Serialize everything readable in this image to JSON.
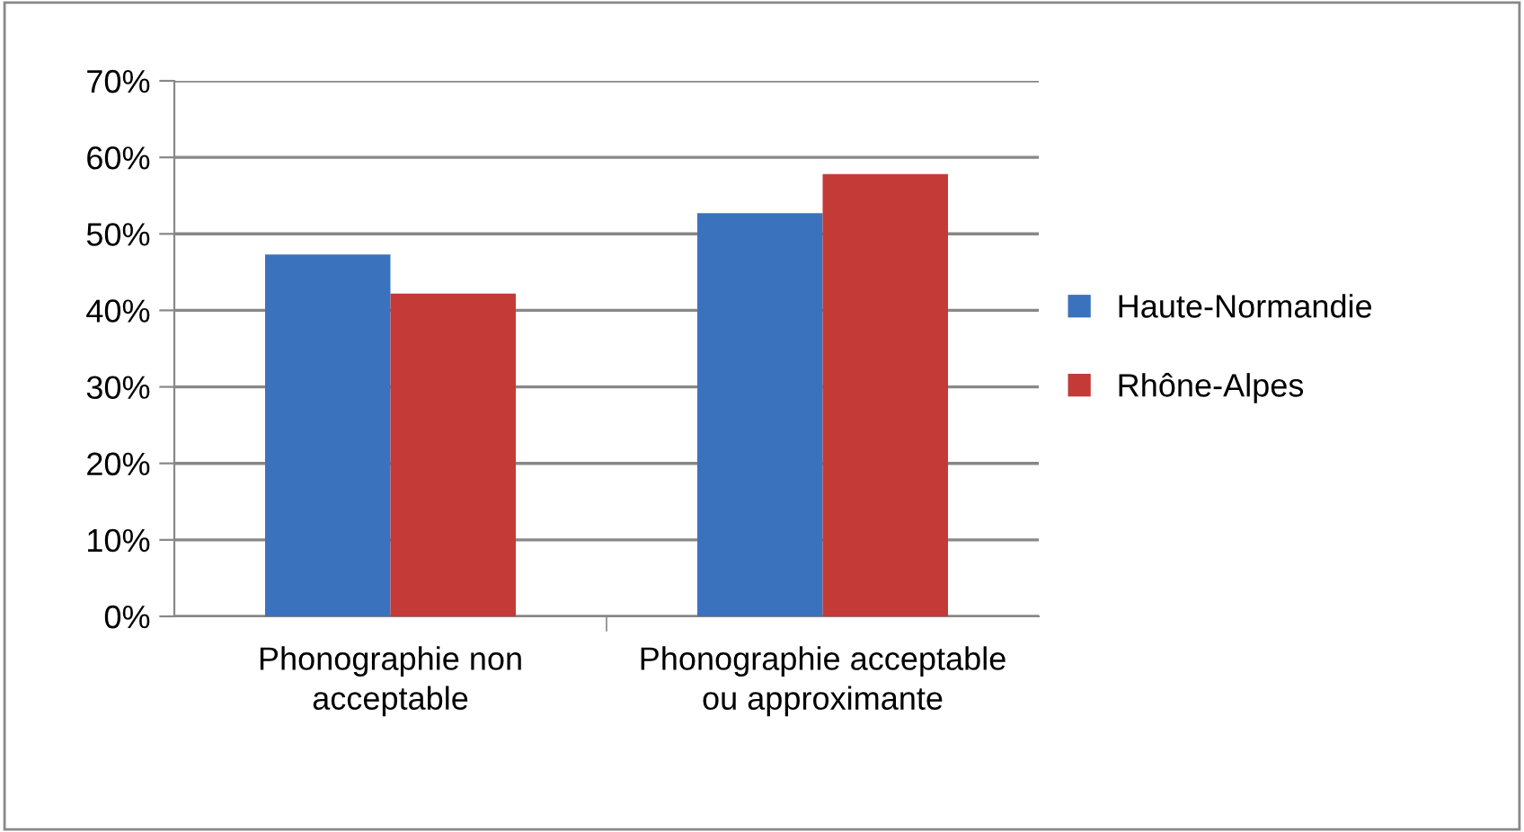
{
  "chart_data": {
    "type": "bar",
    "categories": [
      "Phonographie non acceptable",
      "Phonographie acceptable ou approximante"
    ],
    "series": [
      {
        "name": "Haute-Normandie",
        "color": "#3a72be",
        "values": [
          0.473,
          0.527
        ]
      },
      {
        "name": "Rhône-Alpes",
        "color": "#c43a36",
        "values": [
          0.422,
          0.578
        ]
      }
    ],
    "ylim": [
      0,
      0.7
    ],
    "yticks": [
      {
        "value": 0,
        "label": "0%"
      },
      {
        "value": 0.1,
        "label": "10%"
      },
      {
        "value": 0.2,
        "label": "20%"
      },
      {
        "value": 0.3,
        "label": "30%"
      },
      {
        "value": 0.4,
        "label": "40%"
      },
      {
        "value": 0.5,
        "label": "50%"
      },
      {
        "value": 0.6,
        "label": "60%"
      },
      {
        "value": 0.7,
        "label": "70%"
      }
    ],
    "grid": "y",
    "legend": "right"
  }
}
